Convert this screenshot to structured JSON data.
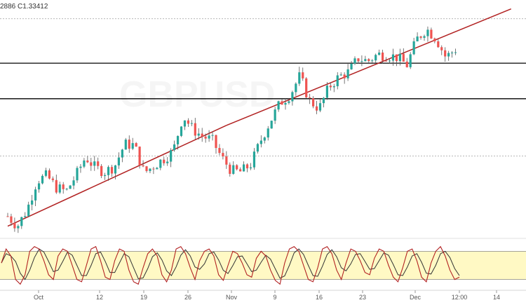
{
  "header": {
    "ohlc_text": "2886  C1.33412"
  },
  "watermark": {
    "text": "GBPUSD"
  },
  "colors": {
    "bull": "#26a69a",
    "bear": "#ef5350",
    "wick": "#555555",
    "trendline": "#b22222",
    "level": "#000000",
    "dotted": "#9e9e9e",
    "osc_band": "#fff9c4",
    "osc_k": "#b22222",
    "osc_d": "#333333"
  },
  "chart_data": {
    "type": "candlestick",
    "title": "",
    "x_axis": {
      "ticks": [
        "Oct",
        "12",
        "19",
        "26",
        "Nov",
        "9",
        "16",
        "23",
        "Dec",
        "12:00",
        "14"
      ]
    },
    "seed": {
      "first_close": 1.2105
    },
    "close_path": [
      1.2105,
      1.2055,
      1.214,
      1.2285,
      1.231,
      1.225,
      1.223,
      1.231,
      1.2405,
      1.235,
      1.233,
      1.236,
      1.247,
      1.2465,
      1.2325,
      1.236,
      1.2395,
      1.2435,
      1.2615,
      1.2545,
      1.251,
      1.249,
      1.24,
      1.2335,
      1.233,
      1.237,
      1.249,
      1.259,
      1.268,
      1.272,
      1.2815,
      1.269,
      1.265,
      1.276,
      1.281,
      1.2835,
      1.2905,
      1.289,
      1.2925,
      1.292,
      1.291,
      1.287,
      1.3,
      1.3055,
      1.3005,
      1.291,
      1.295
    ],
    "levels": [
      1.3105,
      1.288,
      1.27,
      1.241
    ],
    "strong_levels": [
      1.288,
      1.27
    ],
    "trendlines": [
      {
        "from": [
          0,
          1.2055
        ],
        "to": [
          63,
          1.2565
        ]
      },
      {
        "from": [
          63,
          1.2565
        ],
        "to": [
          145,
          1.3155
        ]
      }
    ],
    "oscillator": {
      "type": "stochastic",
      "upper": 80,
      "lower": 20,
      "k_values": [
        55,
        85,
        70,
        20,
        10,
        30,
        80,
        90,
        85,
        60,
        30,
        20,
        70,
        85,
        80,
        50,
        20,
        15,
        50,
        85,
        90,
        60,
        25,
        20,
        60,
        85,
        80,
        40,
        15,
        10,
        45,
        75,
        85,
        70,
        30,
        15,
        40,
        85,
        90,
        75,
        45,
        20,
        60,
        80,
        85,
        70,
        30,
        18,
        50,
        80,
        75,
        55,
        30,
        25,
        65,
        80,
        70,
        40,
        18,
        10,
        55,
        85,
        90,
        80,
        50,
        20,
        15,
        45,
        85,
        90,
        75,
        40,
        20,
        55,
        85,
        80,
        60,
        35,
        30,
        65,
        85,
        80,
        50,
        25,
        15,
        45,
        80,
        85,
        60,
        25,
        15,
        55,
        80,
        90,
        70,
        40,
        20,
        25
      ]
    }
  }
}
